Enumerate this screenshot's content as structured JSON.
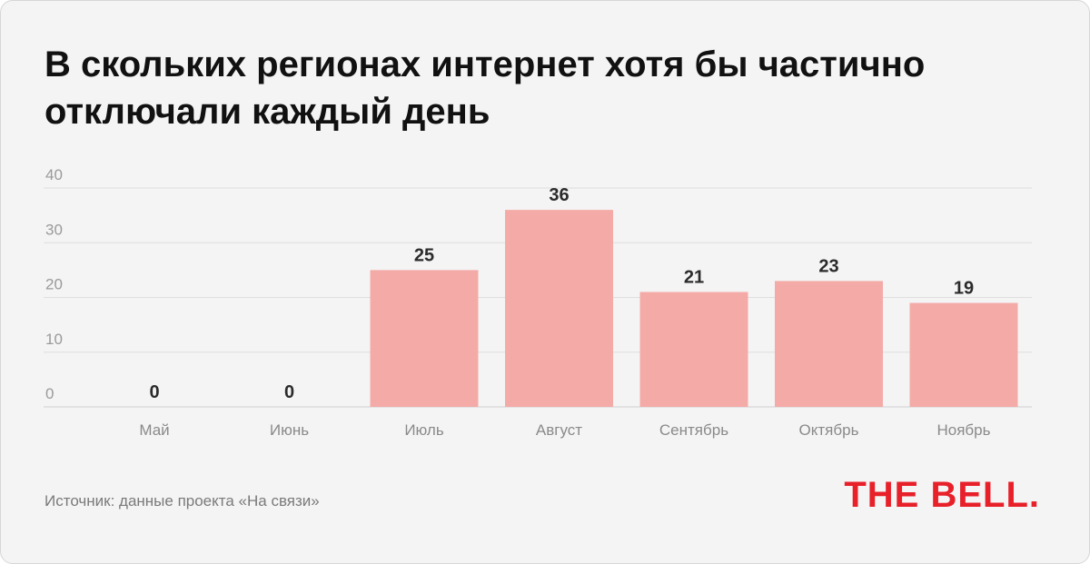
{
  "title_lines": [
    "В скольких регионах интернет хотя бы частично",
    "отключали каждый день"
  ],
  "source": "Источник: данные проекта «На связи»",
  "logo": "THE BELL.",
  "colors": {
    "bar": "#f4aba7",
    "logo": "#e8202a",
    "background": "#f4f4f4"
  },
  "chart_data": {
    "type": "bar",
    "categories": [
      "Май",
      "Июнь",
      "Июль",
      "Август",
      "Сентябрь",
      "Октябрь",
      "Ноябрь"
    ],
    "values": [
      0,
      0,
      25,
      36,
      21,
      23,
      19
    ],
    "ylim": [
      0,
      40
    ],
    "yticks": [
      0,
      10,
      20,
      30,
      40
    ],
    "grid": true,
    "data_labels": true
  }
}
